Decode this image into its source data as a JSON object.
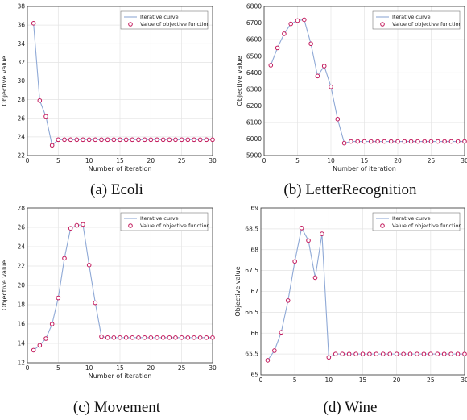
{
  "chart_data": [
    {
      "type": "line",
      "caption": "(a) Ecoli",
      "xlabel": "Number of iteration",
      "ylabel": "Objective value",
      "xlim": [
        0,
        30
      ],
      "ylim": [
        22,
        38
      ],
      "xticks": [
        0,
        5,
        10,
        15,
        20,
        25,
        30
      ],
      "yticks": [
        22,
        24,
        26,
        28,
        30,
        32,
        34,
        36,
        38
      ],
      "grid": true,
      "legend_position": "top-right",
      "series": [
        {
          "name": "Iterative curve",
          "style": "line",
          "color": "#8fa9d6"
        },
        {
          "name": "Value of objective function",
          "style": "markers",
          "color": "#c2185b"
        }
      ],
      "x": [
        1,
        2,
        3,
        4,
        5,
        6,
        7,
        8,
        9,
        10,
        11,
        12,
        13,
        14,
        15,
        16,
        17,
        18,
        19,
        20,
        21,
        22,
        23,
        24,
        25,
        26,
        27,
        28,
        29,
        30
      ],
      "y": [
        36.2,
        27.9,
        26.2,
        23.1,
        23.7,
        23.7,
        23.7,
        23.7,
        23.7,
        23.7,
        23.7,
        23.7,
        23.7,
        23.7,
        23.7,
        23.7,
        23.7,
        23.7,
        23.7,
        23.7,
        23.7,
        23.7,
        23.7,
        23.7,
        23.7,
        23.7,
        23.7,
        23.7,
        23.7,
        23.7
      ]
    },
    {
      "type": "line",
      "caption": "(b) LetterRecognition",
      "xlabel": "Number of iteration",
      "ylabel": "Objective value",
      "xlim": [
        0,
        30
      ],
      "ylim": [
        5900,
        6800
      ],
      "xticks": [
        0,
        5,
        10,
        15,
        20,
        25,
        30
      ],
      "yticks": [
        5900,
        6000,
        6100,
        6200,
        6300,
        6400,
        6500,
        6600,
        6700,
        6800
      ],
      "grid": true,
      "legend_position": "top-right",
      "series": [
        {
          "name": "Iterative curve",
          "style": "line",
          "color": "#8fa9d6"
        },
        {
          "name": "Value of objective function",
          "style": "markers",
          "color": "#c2185b"
        }
      ],
      "x": [
        1,
        2,
        3,
        4,
        5,
        6,
        7,
        8,
        9,
        10,
        11,
        12,
        13,
        14,
        15,
        16,
        17,
        18,
        19,
        20,
        21,
        22,
        23,
        24,
        25,
        26,
        27,
        28,
        29,
        30
      ],
      "y": [
        6445,
        6550,
        6635,
        6695,
        6715,
        6720,
        6575,
        6380,
        6440,
        6315,
        6120,
        5975,
        5985,
        5985,
        5985,
        5985,
        5985,
        5985,
        5985,
        5985,
        5985,
        5985,
        5985,
        5985,
        5985,
        5985,
        5985,
        5985,
        5985,
        5985
      ]
    },
    {
      "type": "line",
      "caption": "(c) Movement",
      "xlabel": "Number of iteration",
      "ylabel": "Objective value",
      "xlim": [
        0,
        30
      ],
      "ylim": [
        12,
        28
      ],
      "xticks": [
        0,
        5,
        10,
        15,
        20,
        25,
        30
      ],
      "yticks": [
        12,
        14,
        16,
        18,
        20,
        22,
        24,
        26,
        28
      ],
      "grid": true,
      "legend_position": "top-right",
      "series": [
        {
          "name": "Iterative curve",
          "style": "line",
          "color": "#8fa9d6"
        },
        {
          "name": "Value of objective function",
          "style": "markers",
          "color": "#c2185b"
        }
      ],
      "x": [
        1,
        2,
        3,
        4,
        5,
        6,
        7,
        8,
        9,
        10,
        11,
        12,
        13,
        14,
        15,
        16,
        17,
        18,
        19,
        20,
        21,
        22,
        23,
        24,
        25,
        26,
        27,
        28,
        29,
        30
      ],
      "y": [
        13.3,
        13.8,
        14.5,
        16.0,
        18.7,
        22.8,
        25.9,
        26.2,
        26.3,
        22.1,
        18.2,
        14.7,
        14.6,
        14.6,
        14.6,
        14.6,
        14.6,
        14.6,
        14.6,
        14.6,
        14.6,
        14.6,
        14.6,
        14.6,
        14.6,
        14.6,
        14.6,
        14.6,
        14.6,
        14.6
      ]
    },
    {
      "type": "line",
      "caption": "(d) Wine",
      "xlabel": "Number of iteration",
      "ylabel": "Objective value",
      "xlim": [
        0,
        30
      ],
      "ylim": [
        65,
        69
      ],
      "xticks": [
        0,
        5,
        10,
        15,
        20,
        25,
        30
      ],
      "yticks": [
        65,
        65.5,
        66,
        66.5,
        67,
        67.5,
        68,
        68.5,
        69
      ],
      "ytick_labels": [
        "65",
        "65.5",
        "66",
        "66.5",
        "67",
        "67.5",
        "68",
        "68.5",
        "69"
      ],
      "grid": true,
      "legend_position": "top-right",
      "series": [
        {
          "name": "Iterative curve",
          "style": "line",
          "color": "#8fa9d6"
        },
        {
          "name": "Value of objective function",
          "style": "markers",
          "color": "#c2185b"
        }
      ],
      "x": [
        1,
        2,
        3,
        4,
        5,
        6,
        7,
        8,
        9,
        10,
        11,
        12,
        13,
        14,
        15,
        16,
        17,
        18,
        19,
        20,
        21,
        22,
        23,
        24,
        25,
        26,
        27,
        28,
        29,
        30
      ],
      "y": [
        65.35,
        65.58,
        66.02,
        66.78,
        67.72,
        68.52,
        68.22,
        67.33,
        68.38,
        65.42,
        65.5,
        65.5,
        65.5,
        65.5,
        65.5,
        65.5,
        65.5,
        65.5,
        65.5,
        65.5,
        65.5,
        65.5,
        65.5,
        65.5,
        65.5,
        65.5,
        65.5,
        65.5,
        65.5,
        65.5
      ]
    }
  ]
}
